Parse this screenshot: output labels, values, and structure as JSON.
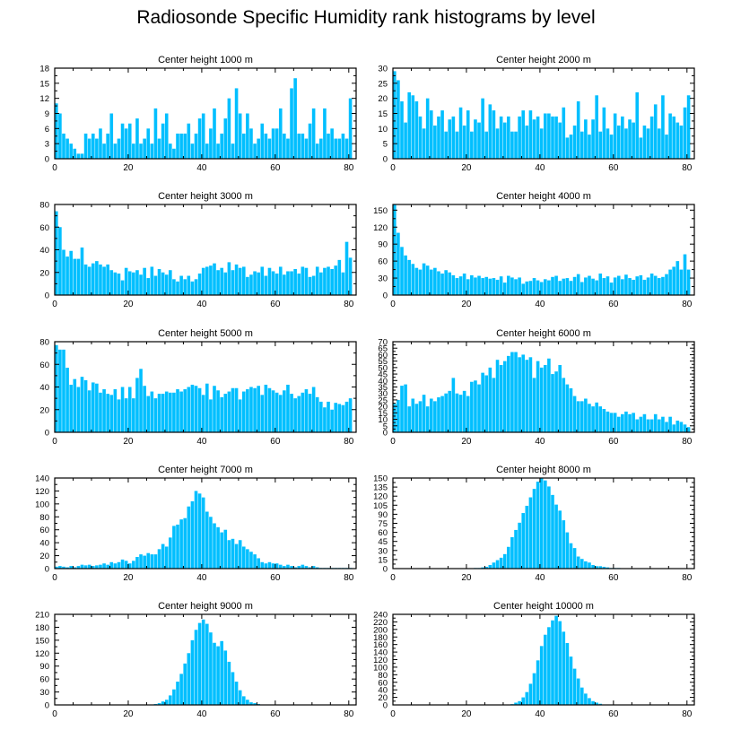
{
  "title": "Radiosonde Specific Humidity rank histograms by level",
  "colors": {
    "bar": "#00BFFF",
    "bar_edge": "#5fd3ff",
    "axis": "#000000"
  },
  "chart_data": [
    {
      "type": "bar",
      "title": "Center height 1000 m",
      "xlim": [
        0,
        82
      ],
      "ylim": [
        0,
        18
      ],
      "xticks": [
        0,
        20,
        40,
        60,
        80
      ],
      "yticks": [
        0,
        3,
        6,
        9,
        12,
        15,
        18
      ],
      "xlabel": "",
      "ylabel": "",
      "values": [
        11,
        9,
        5,
        4,
        3,
        2,
        1,
        1,
        5,
        4,
        5,
        4,
        6,
        3,
        5,
        9,
        3,
        4,
        7,
        6,
        7,
        3,
        8,
        3,
        4,
        6,
        3,
        10,
        4,
        7,
        9,
        3,
        2,
        5,
        5,
        5,
        7,
        3,
        5,
        8,
        9,
        3,
        6,
        10,
        3,
        5,
        8,
        12,
        3,
        14,
        9,
        5,
        9,
        6,
        3,
        4,
        7,
        5,
        4,
        6,
        6,
        10,
        5,
        4,
        14,
        16,
        5,
        5,
        4,
        7,
        10,
        3,
        4,
        10,
        5,
        6,
        4,
        4,
        5,
        4,
        12
      ]
    },
    {
      "type": "bar",
      "title": "Center height 2000 m",
      "xlim": [
        0,
        82
      ],
      "ylim": [
        0,
        30
      ],
      "xticks": [
        0,
        20,
        40,
        60,
        80
      ],
      "yticks": [
        0,
        5,
        10,
        15,
        20,
        25,
        30
      ],
      "xlabel": "",
      "ylabel": "",
      "values": [
        29,
        26,
        19,
        12,
        22,
        21,
        19,
        14,
        10,
        20,
        16,
        11,
        14,
        16,
        9,
        13,
        14,
        9,
        17,
        11,
        16,
        9,
        13,
        12,
        20,
        9,
        18,
        16,
        10,
        14,
        12,
        14,
        9,
        9,
        14,
        16,
        11,
        16,
        13,
        14,
        10,
        15,
        15,
        14,
        14,
        12,
        17,
        7,
        8,
        11,
        19,
        9,
        13,
        8,
        13,
        21,
        9,
        17,
        10,
        8,
        15,
        11,
        14,
        10,
        13,
        12,
        22,
        7,
        11,
        10,
        14,
        18,
        10,
        21,
        8,
        15,
        14,
        12,
        11,
        17,
        21
      ]
    },
    {
      "type": "bar",
      "title": "Center height 3000 m",
      "xlim": [
        0,
        82
      ],
      "ylim": [
        0,
        80
      ],
      "xticks": [
        0,
        20,
        40,
        60,
        80
      ],
      "yticks": [
        0,
        20,
        40,
        60,
        80
      ],
      "xlabel": "",
      "ylabel": "",
      "values": [
        74,
        60,
        40,
        34,
        39,
        32,
        32,
        42,
        27,
        25,
        28,
        30,
        27,
        25,
        27,
        22,
        20,
        19,
        13,
        24,
        21,
        20,
        22,
        18,
        24,
        15,
        25,
        17,
        23,
        20,
        18,
        22,
        14,
        12,
        17,
        14,
        17,
        12,
        14,
        19,
        24,
        25,
        26,
        28,
        22,
        24,
        20,
        29,
        22,
        27,
        24,
        25,
        16,
        18,
        21,
        20,
        25,
        17,
        24,
        21,
        19,
        25,
        18,
        21,
        21,
        23,
        19,
        25,
        24,
        16,
        17,
        25,
        20,
        24,
        25,
        23,
        26,
        31,
        20,
        47,
        33
      ]
    },
    {
      "type": "bar",
      "title": "Center height 4000 m",
      "xlim": [
        0,
        82
      ],
      "ylim": [
        0,
        160
      ],
      "xticks": [
        0,
        20,
        40,
        60,
        80
      ],
      "yticks": [
        0,
        30,
        60,
        90,
        120,
        150
      ],
      "xlabel": "",
      "ylabel": "",
      "values": [
        160,
        110,
        85,
        70,
        62,
        55,
        48,
        45,
        56,
        52,
        45,
        48,
        42,
        38,
        44,
        40,
        35,
        30,
        33,
        38,
        28,
        35,
        31,
        34,
        30,
        32,
        29,
        30,
        27,
        33,
        22,
        34,
        31,
        28,
        31,
        20,
        24,
        25,
        30,
        26,
        23,
        28,
        26,
        32,
        34,
        25,
        29,
        30,
        25,
        32,
        37,
        23,
        31,
        34,
        29,
        26,
        38,
        30,
        33,
        22,
        31,
        34,
        28,
        36,
        30,
        27,
        33,
        35,
        27,
        31,
        38,
        34,
        30,
        32,
        37,
        45,
        50,
        60,
        45,
        72,
        45
      ]
    },
    {
      "type": "bar",
      "title": "Center height 5000 m",
      "xlim": [
        0,
        82
      ],
      "ylim": [
        0,
        80
      ],
      "xticks": [
        0,
        20,
        40,
        60,
        80
      ],
      "yticks": [
        0,
        20,
        40,
        60,
        80
      ],
      "xlabel": "",
      "ylabel": "",
      "values": [
        77,
        73,
        73,
        57,
        42,
        47,
        40,
        49,
        46,
        37,
        44,
        43,
        35,
        38,
        34,
        33,
        38,
        29,
        40,
        30,
        40,
        30,
        48,
        56,
        41,
        32,
        36,
        30,
        34,
        34,
        36,
        35,
        35,
        38,
        36,
        38,
        40,
        42,
        41,
        39,
        33,
        43,
        29,
        41,
        37,
        31,
        34,
        36,
        39,
        39,
        29,
        36,
        38,
        40,
        39,
        41,
        33,
        42,
        39,
        37,
        35,
        33,
        37,
        42,
        34,
        30,
        32,
        35,
        38,
        34,
        40,
        31,
        27,
        22,
        27,
        20,
        26,
        25,
        24,
        27,
        30
      ]
    },
    {
      "type": "bar",
      "title": "Center height 6000 m",
      "xlim": [
        0,
        82
      ],
      "ylim": [
        0,
        70
      ],
      "xticks": [
        0,
        20,
        40,
        60,
        80
      ],
      "yticks": [
        0,
        5,
        10,
        15,
        20,
        25,
        30,
        35,
        40,
        45,
        50,
        55,
        60,
        65,
        70
      ],
      "xlabel": "",
      "ylabel": "",
      "values": [
        22,
        25,
        36,
        37,
        20,
        26,
        22,
        24,
        29,
        20,
        26,
        24,
        27,
        28,
        30,
        32,
        42,
        30,
        29,
        32,
        28,
        39,
        40,
        37,
        46,
        44,
        50,
        42,
        56,
        52,
        55,
        59,
        62,
        62,
        58,
        60,
        56,
        58,
        42,
        55,
        50,
        52,
        57,
        45,
        47,
        52,
        42,
        37,
        34,
        28,
        24,
        24,
        26,
        22,
        20,
        23,
        20,
        18,
        16,
        15,
        15,
        12,
        14,
        16,
        14,
        15,
        10,
        12,
        14,
        10,
        10,
        14,
        10,
        12,
        8,
        12,
        6,
        9,
        8,
        6,
        4
      ]
    },
    {
      "type": "bar",
      "title": "Center height 7000 m",
      "xlim": [
        0,
        82
      ],
      "ylim": [
        0,
        140
      ],
      "xticks": [
        0,
        20,
        40,
        60,
        80
      ],
      "yticks": [
        0,
        20,
        40,
        60,
        80,
        100,
        120,
        140
      ],
      "xlabel": "",
      "ylabel": "",
      "values": [
        3,
        4,
        3,
        2,
        4,
        2,
        4,
        6,
        5,
        6,
        4,
        5,
        6,
        8,
        6,
        10,
        8,
        10,
        14,
        12,
        8,
        12,
        18,
        22,
        20,
        24,
        22,
        22,
        30,
        38,
        34,
        48,
        66,
        68,
        76,
        78,
        96,
        104,
        120,
        116,
        110,
        88,
        80,
        70,
        64,
        56,
        60,
        44,
        46,
        38,
        44,
        34,
        30,
        26,
        22,
        16,
        10,
        8,
        10,
        8,
        8,
        6,
        4,
        6,
        4,
        2,
        4,
        6,
        4,
        2,
        4,
        2,
        1,
        1,
        1,
        1,
        1,
        1,
        1,
        1,
        1
      ]
    },
    {
      "type": "bar",
      "title": "Center height 8000 m",
      "xlim": [
        0,
        82
      ],
      "ylim": [
        0,
        150
      ],
      "xticks": [
        0,
        20,
        40,
        60,
        80
      ],
      "yticks": [
        0,
        15,
        30,
        45,
        60,
        75,
        90,
        105,
        120,
        135,
        150
      ],
      "xlabel": "",
      "ylabel": "",
      "values": [
        0,
        0,
        0,
        0,
        0,
        0,
        0,
        0,
        0,
        0,
        0,
        0,
        0,
        0,
        0,
        0,
        0,
        0,
        0,
        0,
        0,
        0,
        1,
        1,
        2,
        3,
        6,
        10,
        14,
        18,
        24,
        36,
        52,
        64,
        76,
        92,
        104,
        118,
        132,
        144,
        150,
        146,
        136,
        122,
        106,
        96,
        80,
        60,
        42,
        34,
        20,
        16,
        12,
        10,
        6,
        4,
        4,
        3,
        2,
        1,
        1,
        1,
        0,
        0,
        0,
        0,
        0,
        0,
        0,
        0,
        0,
        0,
        0,
        0,
        0,
        0,
        0,
        0,
        0,
        0,
        0
      ]
    },
    {
      "type": "bar",
      "title": "Center height 9000 m",
      "xlim": [
        0,
        82
      ],
      "ylim": [
        0,
        210
      ],
      "xticks": [
        0,
        20,
        40,
        60,
        80
      ],
      "yticks": [
        0,
        30,
        60,
        90,
        120,
        150,
        180,
        210
      ],
      "xlabel": "",
      "ylabel": "",
      "values": [
        0,
        0,
        0,
        0,
        0,
        0,
        0,
        0,
        0,
        0,
        0,
        0,
        0,
        0,
        0,
        0,
        0,
        0,
        0,
        0,
        0,
        0,
        0,
        0,
        0,
        0,
        0,
        2,
        4,
        8,
        12,
        22,
        36,
        54,
        72,
        96,
        120,
        150,
        174,
        190,
        198,
        188,
        168,
        144,
        136,
        148,
        126,
        100,
        76,
        54,
        34,
        20,
        12,
        6,
        4,
        2,
        1,
        1,
        0,
        0,
        0,
        0,
        0,
        0,
        0,
        0,
        0,
        0,
        0,
        0,
        0,
        0,
        0,
        0,
        0,
        0,
        0,
        0,
        0,
        0,
        0
      ]
    },
    {
      "type": "bar",
      "title": "Center height 10000 m",
      "xlim": [
        0,
        82
      ],
      "ylim": [
        0,
        240
      ],
      "xticks": [
        0,
        20,
        40,
        60,
        80
      ],
      "yticks": [
        0,
        20,
        40,
        60,
        80,
        100,
        120,
        140,
        160,
        180,
        200,
        220,
        240
      ],
      "xlabel": "",
      "ylabel": "",
      "values": [
        0,
        0,
        0,
        0,
        0,
        0,
        0,
        0,
        0,
        0,
        0,
        0,
        0,
        0,
        0,
        0,
        0,
        0,
        0,
        0,
        0,
        0,
        0,
        0,
        0,
        0,
        0,
        0,
        0,
        0,
        0,
        0,
        2,
        6,
        10,
        20,
        34,
        56,
        84,
        118,
        156,
        186,
        206,
        224,
        236,
        222,
        194,
        164,
        128,
        96,
        70,
        46,
        30,
        18,
        10,
        6,
        3,
        1,
        1,
        0,
        0,
        0,
        0,
        0,
        0,
        0,
        0,
        0,
        0,
        0,
        0,
        0,
        0,
        0,
        0,
        0,
        0,
        0,
        0,
        0,
        0
      ]
    }
  ]
}
